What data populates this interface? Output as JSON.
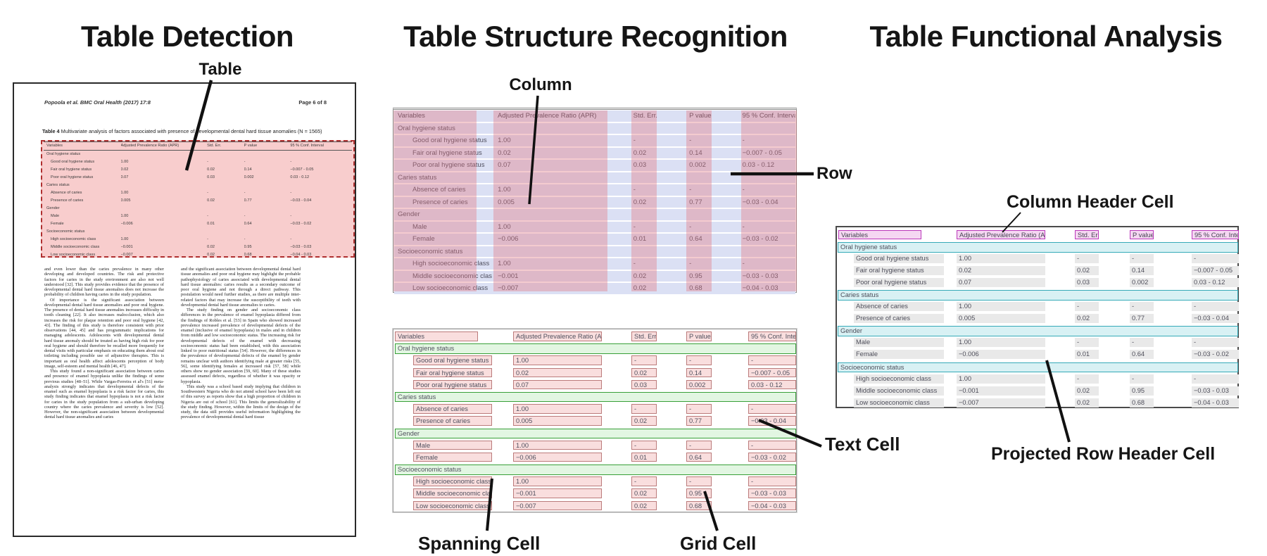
{
  "panels": {
    "detection": {
      "title": "Table Detection",
      "callout_table": "Table"
    },
    "structure": {
      "title": "Table Structure Recognition",
      "callout_column": "Column",
      "callout_row": "Row",
      "callout_spanning_cell": "Spanning Cell",
      "callout_grid_cell": "Grid Cell",
      "callout_text_cell": "Text Cell"
    },
    "functional": {
      "title": "Table Functional Analysis",
      "callout_column_header_cell": "Column Header Cell",
      "callout_projected_row_header_cell": "Projected Row Header Cell"
    }
  },
  "document": {
    "header_left": "Popoola et al. BMC Oral Health (2017) 17:8",
    "header_right": "Page 6 of 8",
    "caption_label": "Table 4",
    "caption_text": " Multivariate analysis of factors associated with presence of developmental dental hard tissue anomalies (N = 1565)",
    "body_col1": [
      "and even lower than the caries prevalence in many other developing and developed countries. The risk and protective factors for caries in the study environment are also not well understood [32]. This study provides evidence that the presence of developmental dental hard tissue anomalies does not increase the probability of children having caries in the study population.",
      "Of importance is the significant association between developmental dental hard tissue anomalies and poor oral hygiene. The presence of dental hard tissue anomalies increases difficulty in tooth cleaning [22]. It also increases malocclusion, which also increases the risk for plaque retention and poor oral hygiene [42, 43]. The finding of this study is therefore consistent with prior observations [44, 45] and has programmatic implications for managing adolescents. Adolescents with developmental dental hard tissue anomaly should be treated as having high risk for poor oral hygiene and should therefore be recalled more frequently for dental visits with particular emphasis on educating them about oral toileting including possible use of adjunctive therapies. This is important as oral health affect adolescents perception of body image, self-esteem and mental health [46, 47].",
      "This study found a non-significant association between caries and presence of enamel hypoplasia unlike the findings of some previous studies [48–51]. While Vargas-Ferreira et al's [51] meta-analysis strongly indicates that developmental defects of the enamel such as enamel hypoplasia is a risk factor for caries, this study finding indicates that enamel hypoplasia is not a risk factor for caries in the study population from a sub-urban developing country where the caries prevalence and severity is low [52]. However, the non-significant association between developmental dental hard tissue anomalies and caries"
    ],
    "body_col2": [
      "and the significant association between developmental dental hard tissue anomalies and poor oral hygiene may highlight the probable pathophysiology of caries associated with developmental dental hard tissue anomalies: caries results as a secondary outcome of poor oral hygiene and not through a direct pathway. This postulation would need further studies, as there are multiple inter-related factors that may increase the susceptibility of teeth with developmental dental hard tissue anomalies to caries.",
      "The study finding on gender and socioeconomic class differences in the prevalence of enamel hypoplasia differed from the findings of Robles et al. [53] in Spain who showed increased prevalence increased prevalence of developmental defects of the enamel (inclusive of enamel hypoplasia) in males and in children from middle and low socioeconomic status. The increasing risk for developmental defects of the enamel with decreasing socioeconomic status had been established, with this association linked to poor nutritional status [54]. However, the differences in the prevalence of developmental defects of the enamel by gender remains unclear with authors identifying male at greater risks [55, 56], some identifying females at increased risk [57, 58] while others show no gender association [59, 60]. Many of these studies assessed enamel defects, regardless of whether it was opacity or hypoplasia.",
      "This study was a school based study implying that children in Southwestern Nigeria who do not attend school have been left out of this survey as reports show that a high proportion of children in Nigeria are out of school [61]. This limits the generalizability of the study finding. However, within the limits of the design of the study, the data still provides useful information highlighting the prevalence of developmental dental hard tissue"
    ]
  },
  "table": {
    "columns": [
      "Variables",
      "Adjusted Prevalence Ratio (APR)",
      "Std. Err.",
      "P value",
      "95 % Conf. Interval"
    ],
    "rows": [
      {
        "type": "section",
        "cells": [
          "Oral hygiene status",
          "",
          "",
          "",
          ""
        ]
      },
      {
        "type": "data",
        "cells": [
          "Good oral hygiene status",
          "1.00",
          "-",
          "-",
          "-"
        ]
      },
      {
        "type": "data",
        "cells": [
          "Fair oral hygiene status",
          "0.02",
          "0.02",
          "0.14",
          "−0.007 - 0.05"
        ]
      },
      {
        "type": "data",
        "cells": [
          "Poor oral hygiene status",
          "0.07",
          "0.03",
          "0.002",
          "0.03 - 0.12"
        ]
      },
      {
        "type": "section",
        "cells": [
          "Caries status",
          "",
          "",
          "",
          ""
        ]
      },
      {
        "type": "data",
        "cells": [
          "Absence of caries",
          "1.00",
          "-",
          "-",
          "-"
        ]
      },
      {
        "type": "data",
        "cells": [
          "Presence of caries",
          "0.005",
          "0.02",
          "0.77",
          "−0.03 - 0.04"
        ]
      },
      {
        "type": "section",
        "cells": [
          "Gender",
          "",
          "",
          "",
          ""
        ]
      },
      {
        "type": "data",
        "cells": [
          "Male",
          "1.00",
          "-",
          "-",
          "-"
        ]
      },
      {
        "type": "data",
        "cells": [
          "Female",
          "−0.006",
          "0.01",
          "0.64",
          "−0.03 - 0.02"
        ]
      },
      {
        "type": "section",
        "cells": [
          "Socioeconomic status",
          "",
          "",
          "",
          ""
        ]
      },
      {
        "type": "data",
        "cells": [
          "High socioeconomic class",
          "1.00",
          "-",
          "-",
          "-"
        ]
      },
      {
        "type": "data",
        "cells": [
          "Middle socioeconomic class",
          "−0.001",
          "0.02",
          "0.95",
          "−0.03 - 0.03"
        ]
      },
      {
        "type": "data",
        "cells": [
          "Low socioeconomic class",
          "−0.007",
          "0.02",
          "0.68",
          "−0.04 - 0.03"
        ]
      }
    ]
  },
  "colors": {
    "detection_fill": "#f8cdcd",
    "detection_border": "#b03030",
    "row_band": "#dbe0f4",
    "column_band": "#e27680",
    "cell_fill": "#f9dede",
    "cell_border": "#bb7b7b",
    "spanning_fill": "#e2f6e2",
    "spanning_border": "#38a038",
    "column_header_fill": "#f5d7f2",
    "column_header_border": "#bb39bb",
    "projected_header_fill": "#d8f1f4",
    "projected_header_border": "#35aab8",
    "grid_chip_fill": "#e9e9e9"
  }
}
